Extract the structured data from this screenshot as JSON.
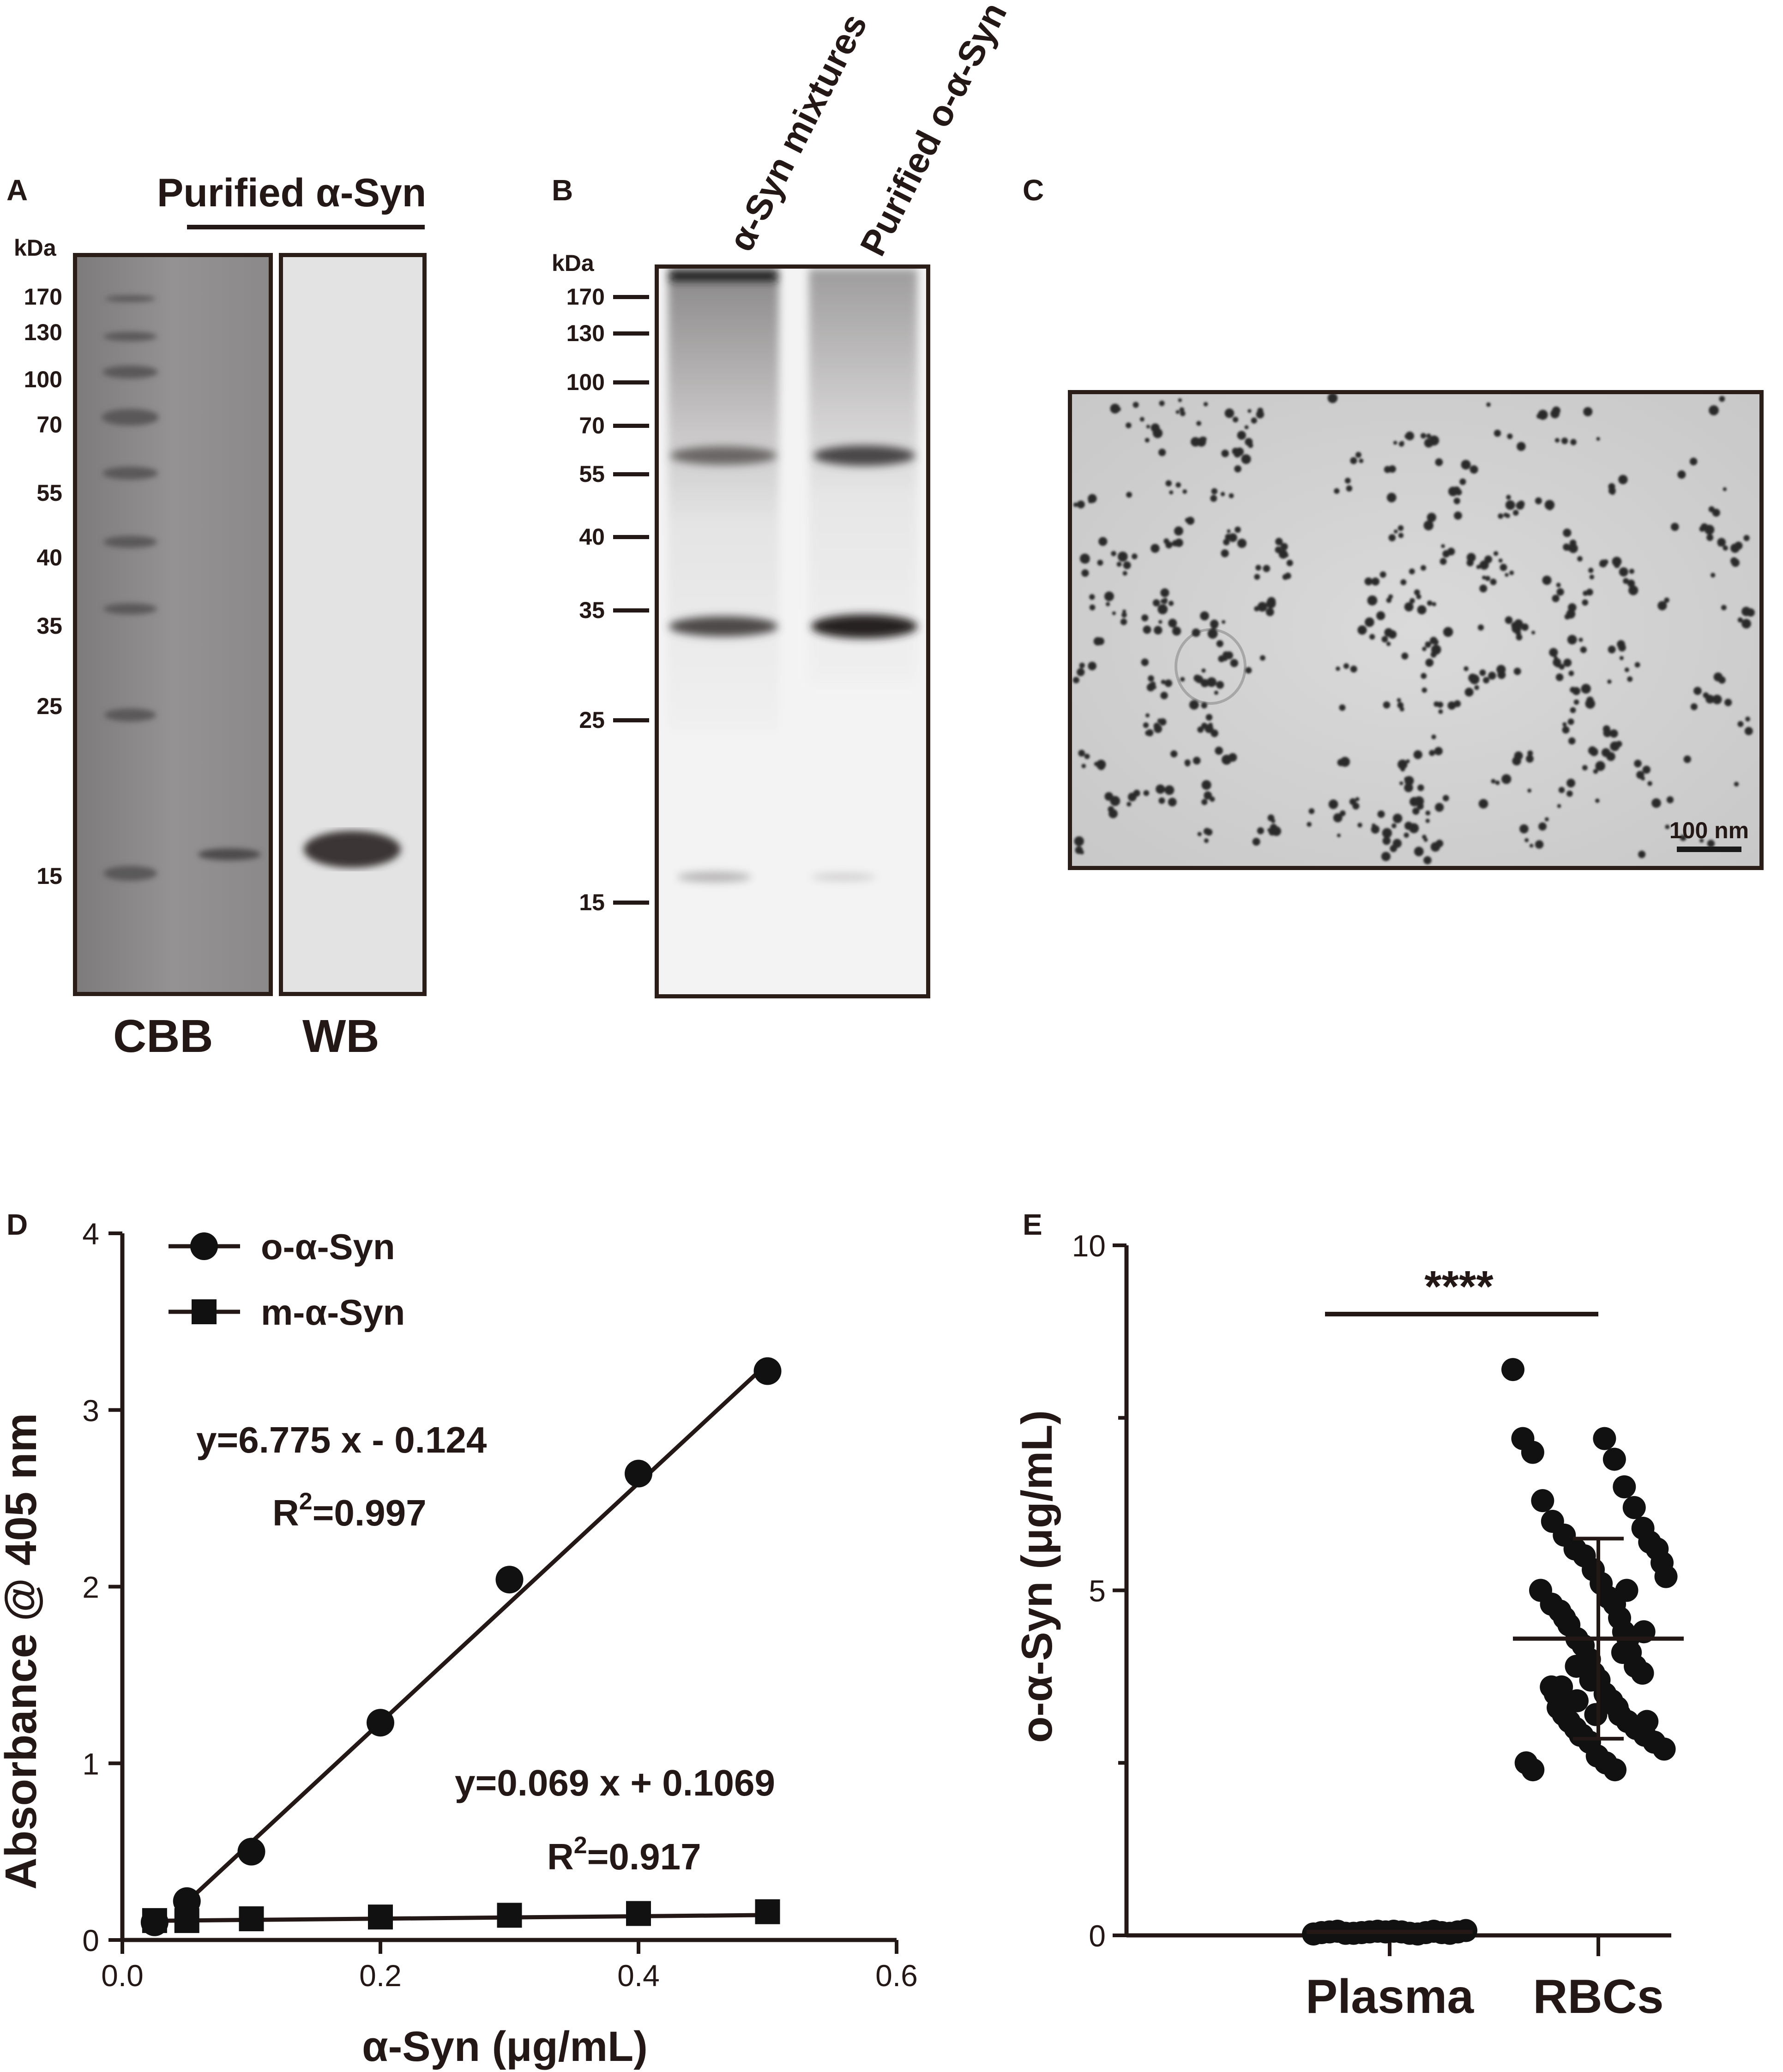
{
  "panel_a": {
    "letter": "A",
    "header": "Purified α-Syn",
    "kda_title": "kDa",
    "markers": [
      "170",
      "130",
      "100",
      "70",
      "55",
      "40",
      "35",
      "25",
      "15"
    ],
    "lane_labels": [
      "CBB",
      "WB"
    ]
  },
  "panel_b": {
    "letter": "B",
    "kda_title": "kDa",
    "markers": [
      "170",
      "130",
      "100",
      "70",
      "55",
      "40",
      "35",
      "25",
      "15"
    ],
    "column_headers": [
      "α-Syn mixtures",
      "Purified o-α-Syn"
    ]
  },
  "panel_c": {
    "letter": "C",
    "scale_bar": "100 nm"
  },
  "panel_d": {
    "letter": "D",
    "equation_oligo": "y=6.775 x - 0.124",
    "r2_oligo_base": "R",
    "r2_oligo_value": "=0.997",
    "equation_mono": "y=0.069 x + 0.1069",
    "r2_mono_base": "R",
    "r2_mono_value": "=0.917",
    "r2_superscript": "2"
  },
  "panel_e": {
    "letter": "E",
    "significance": "****"
  },
  "chart_data": [
    {
      "type": "line",
      "xlabel": "α-Syn (μg/mL)",
      "ylabel": "Absorbance @ 405 nm",
      "xlim": [
        0.0,
        0.6
      ],
      "ylim": [
        0,
        4
      ],
      "xticks": [
        "0.0",
        "0.2",
        "0.4",
        "0.6"
      ],
      "yticks": [
        "0",
        "1",
        "2",
        "3",
        "4"
      ],
      "legend_position": "top-left",
      "series": [
        {
          "name": "o-α-Syn",
          "marker": "circle",
          "x": [
            0.025,
            0.05,
            0.1,
            0.2,
            0.3,
            0.4,
            0.5
          ],
          "y": [
            0.1,
            0.22,
            0.5,
            1.23,
            2.04,
            2.64,
            3.22
          ],
          "fit_slope": 6.775,
          "fit_intercept": -0.124,
          "fit_range": [
            0.05,
            0.5
          ]
        },
        {
          "name": "m-α-Syn",
          "marker": "square",
          "x": [
            0.025,
            0.05,
            0.1,
            0.2,
            0.3,
            0.4,
            0.5
          ],
          "y": [
            0.11,
            0.11,
            0.12,
            0.13,
            0.14,
            0.15,
            0.16
          ],
          "fit_slope": 0.069,
          "fit_intercept": 0.1069,
          "fit_range": [
            0.025,
            0.5
          ]
        }
      ]
    },
    {
      "type": "scatter",
      "ylabel": "o-α-Syn (μg/mL)",
      "categories": [
        "Plasma",
        "RBCs"
      ],
      "ylim": [
        0,
        10
      ],
      "yticks": [
        "0",
        "5",
        "10"
      ],
      "groups": [
        {
          "category": "Plasma",
          "mean": 0.05,
          "values": [
            0.02,
            0.03,
            0.04,
            0.05,
            0.06,
            0.03,
            0.05,
            0.07,
            0.04,
            0.02,
            0.06,
            0.05,
            0.03,
            0.04,
            0.05,
            0.06,
            0.03,
            0.05,
            0.04,
            0.06
          ]
        },
        {
          "category": "RBCs",
          "mean": 4.3,
          "sd": 1.45,
          "values": [
            8.2,
            7.2,
            7.2,
            6.9,
            7.0,
            6.5,
            6.3,
            6.2,
            6.0,
            5.9,
            5.8,
            5.7,
            5.6,
            5.6,
            5.5,
            5.4,
            5.3,
            5.2,
            5.1,
            5.0,
            4.9,
            4.8,
            4.8,
            4.7,
            4.6,
            4.5,
            4.4,
            4.3,
            4.3,
            4.2,
            4.1,
            4.0,
            3.9,
            3.8,
            3.8,
            3.7,
            3.6,
            3.5,
            3.5,
            3.4,
            3.3,
            3.2,
            3.2,
            3.1,
            3.1,
            3.0,
            3.0,
            2.9,
            2.9,
            2.8,
            2.8,
            2.7,
            2.6,
            2.5,
            2.5,
            2.4,
            2.4,
            3.6,
            3.3,
            4.6,
            5.0,
            3.9,
            4.1,
            3.4,
            3.0,
            2.9,
            3.1,
            3.7,
            4.4,
            3.2
          ]
        }
      ]
    }
  ]
}
